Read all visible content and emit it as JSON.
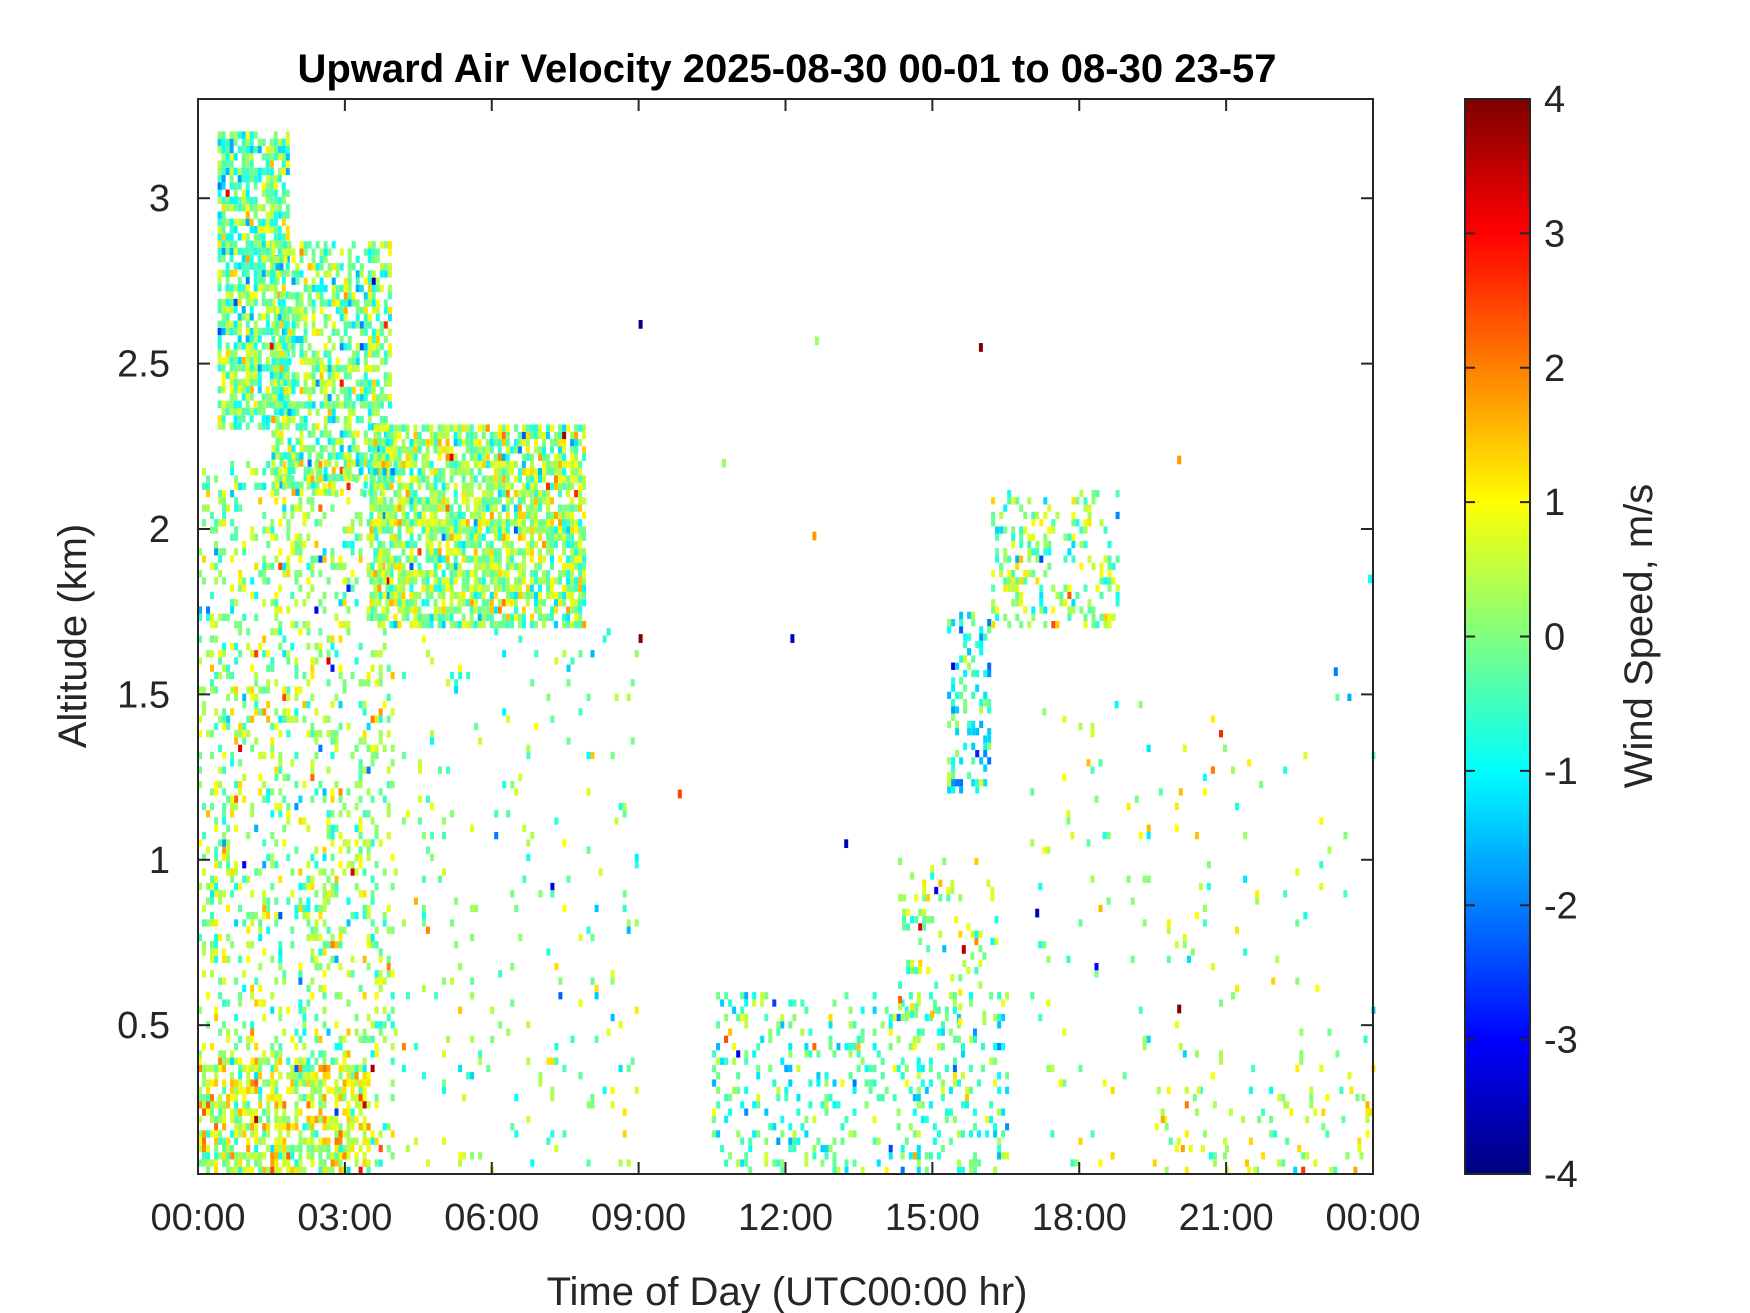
{
  "chart_data": {
    "type": "heatmap",
    "title": "Upward Air Velocity 2025-08-30 00-01 to 08-30 23-57",
    "xlabel": "Time of Day (UTC00:00 hr)",
    "ylabel": "Altitude (km)",
    "colorbar_label": "Wind Speed, m/s",
    "x_ticks": [
      "00:00",
      "03:00",
      "06:00",
      "09:00",
      "12:00",
      "15:00",
      "18:00",
      "21:00",
      "00:00"
    ],
    "x_range_hours": [
      0,
      24
    ],
    "y_ticks": [
      "0.5",
      "1",
      "1.5",
      "2",
      "2.5",
      "3"
    ],
    "y_tick_values": [
      0.5,
      1,
      1.5,
      2,
      2.5,
      3
    ],
    "ylim": [
      0.05,
      3.3
    ],
    "colorbar_ticks": [
      "4",
      "3",
      "2",
      "1",
      "0",
      "-1",
      "-2",
      "-3",
      "-4"
    ],
    "colorbar_tick_values": [
      4,
      3,
      2,
      1,
      0,
      -1,
      -2,
      -3,
      -4
    ],
    "clim": [
      -4,
      4
    ],
    "colormap": "jet",
    "grid": false,
    "data_regions": [
      {
        "t_start": 0.4,
        "t_end": 1.8,
        "alt_low": 2.3,
        "alt_high": 3.2,
        "value_mean": -0.2,
        "density": 0.75
      },
      {
        "t_start": 1.5,
        "t_end": 3.9,
        "alt_low": 2.1,
        "alt_high": 2.85,
        "value_mean": 0.0,
        "density": 0.6
      },
      {
        "t_start": 3.5,
        "t_end": 7.9,
        "alt_low": 1.7,
        "alt_high": 2.3,
        "value_mean": 0.2,
        "density": 0.75
      },
      {
        "t_start": 0.0,
        "t_end": 4.0,
        "alt_low": 0.05,
        "alt_high": 2.2,
        "value_mean": 0.2,
        "density": 0.25
      },
      {
        "t_start": 0.0,
        "t_end": 3.5,
        "alt_low": 0.05,
        "alt_high": 0.4,
        "value_mean": 0.7,
        "density": 0.5
      },
      {
        "t_start": 4.0,
        "t_end": 9.0,
        "alt_low": 0.05,
        "alt_high": 1.7,
        "value_mean": 0.0,
        "density": 0.04
      },
      {
        "t_start": 10.5,
        "t_end": 16.5,
        "alt_low": 0.05,
        "alt_high": 0.6,
        "value_mean": -0.3,
        "density": 0.2
      },
      {
        "t_start": 14.3,
        "t_end": 16.3,
        "alt_low": 0.5,
        "alt_high": 1.0,
        "value_mean": 0.2,
        "density": 0.15
      },
      {
        "t_start": 15.3,
        "t_end": 16.2,
        "alt_low": 1.2,
        "alt_high": 1.75,
        "value_mean": -0.9,
        "density": 0.35
      },
      {
        "t_start": 16.2,
        "t_end": 18.8,
        "alt_low": 1.7,
        "alt_high": 2.1,
        "value_mean": 0.1,
        "density": 0.3
      },
      {
        "t_start": 17.0,
        "t_end": 24.0,
        "alt_low": 0.05,
        "alt_high": 1.5,
        "value_mean": 0.3,
        "density": 0.025
      },
      {
        "t_start": 19.5,
        "t_end": 24.0,
        "alt_low": 0.05,
        "alt_high": 0.3,
        "value_mean": 0.6,
        "density": 0.1
      }
    ],
    "isolated_points": [
      {
        "t": 9.0,
        "alt": 2.61,
        "value": -4.0
      },
      {
        "t": 15.95,
        "alt": 2.54,
        "value": 4.0
      },
      {
        "t": 9.0,
        "alt": 1.66,
        "value": 4.0
      },
      {
        "t": 12.1,
        "alt": 1.66,
        "value": -3.5
      },
      {
        "t": 12.6,
        "alt": 2.56,
        "value": 0.2
      },
      {
        "t": 10.7,
        "alt": 2.19,
        "value": 0.2
      },
      {
        "t": 20.0,
        "alt": 2.2,
        "value": 1.8
      },
      {
        "t": 12.55,
        "alt": 1.97,
        "value": 1.8
      },
      {
        "t": 23.9,
        "alt": 1.84,
        "value": -0.9
      },
      {
        "t": 23.2,
        "alt": 1.56,
        "value": -2.0
      },
      {
        "t": 20.0,
        "alt": 0.54,
        "value": 4.0
      },
      {
        "t": 15.6,
        "alt": 0.72,
        "value": 3.5
      },
      {
        "t": 17.1,
        "alt": 0.83,
        "value": -3.5
      },
      {
        "t": 13.2,
        "alt": 1.04,
        "value": -3.5
      },
      {
        "t": 9.8,
        "alt": 1.19,
        "value": 2.5
      }
    ]
  }
}
